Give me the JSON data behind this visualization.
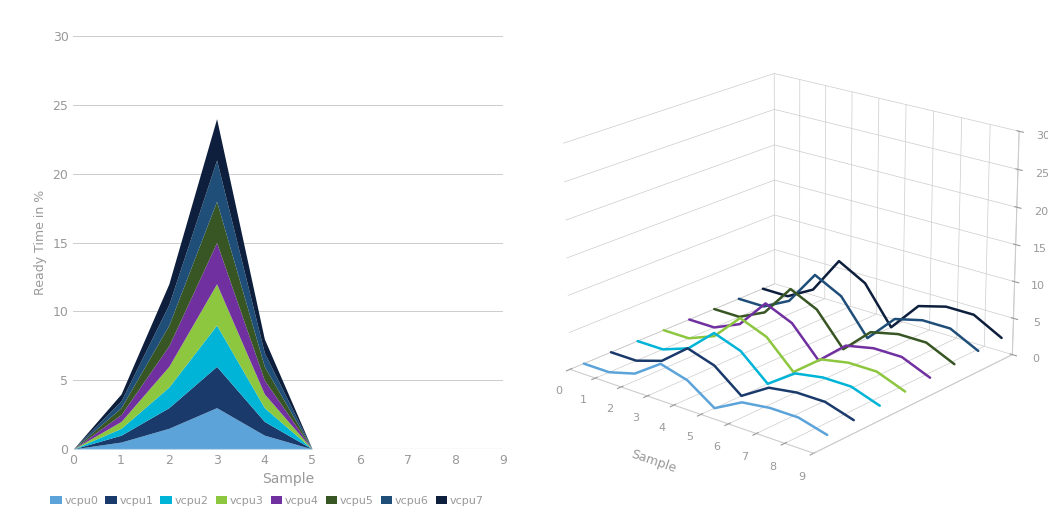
{
  "vcpu_colors": [
    "#4db3e6",
    "#1a3a6b",
    "#00c0f0",
    "#70ad47",
    "#7030a0",
    "#375623",
    "#1f4e79",
    "#0d1f3c"
  ],
  "vcpu_labels": [
    "vcpu0",
    "vcpu1",
    "vcpu2",
    "vcpu3",
    "vcpu4",
    "vcpu5",
    "vcpu6",
    "vcpu7"
  ],
  "left_x": [
    0,
    1,
    2,
    3,
    4,
    5,
    6,
    7,
    8,
    9
  ],
  "left_bands": [
    [
      0,
      0.5,
      1.5,
      3.0,
      1.0,
      0,
      0,
      0,
      0,
      0
    ],
    [
      0,
      0.5,
      1.5,
      3.0,
      1.0,
      0,
      0,
      0,
      0,
      0
    ],
    [
      0,
      0.5,
      1.5,
      3.0,
      1.0,
      0,
      0,
      0,
      0,
      0
    ],
    [
      0,
      0.5,
      1.5,
      3.0,
      1.0,
      0,
      0,
      0,
      0,
      0
    ],
    [
      0,
      0.5,
      1.5,
      3.0,
      1.0,
      0,
      0,
      0,
      0,
      0
    ],
    [
      0,
      0.5,
      1.5,
      3.0,
      1.0,
      0,
      0,
      0,
      0,
      0
    ],
    [
      0,
      0.5,
      1.5,
      3.0,
      1.0,
      0,
      0,
      0,
      0,
      0
    ],
    [
      0,
      0.5,
      1.5,
      3.0,
      1.0,
      0,
      0,
      0,
      0,
      0
    ]
  ],
  "right_data": [
    [
      0,
      0,
      1.5,
      3.5,
      2.5,
      -0.5,
      1.0,
      1.5,
      1.5,
      0.5
    ],
    [
      0,
      0,
      1.5,
      3.5,
      2.5,
      -0.5,
      1.0,
      1.5,
      1.5,
      0.5
    ],
    [
      0,
      0,
      1.5,
      3.5,
      2.5,
      -0.5,
      1.0,
      1.5,
      1.5,
      0.5
    ],
    [
      0,
      0,
      1.5,
      3.5,
      2.5,
      -0.5,
      1.0,
      1.5,
      1.5,
      0.5
    ],
    [
      0,
      0,
      1.5,
      3.5,
      2.5,
      -0.5,
      1.0,
      1.5,
      1.5,
      0.5
    ],
    [
      0,
      0,
      1.5,
      3.5,
      2.5,
      -0.5,
      1.0,
      1.5,
      1.5,
      0.5
    ],
    [
      0,
      0,
      1.5,
      3.5,
      2.5,
      -0.5,
      1.0,
      1.5,
      1.5,
      0.5
    ],
    [
      0,
      0,
      1.5,
      3.5,
      2.5,
      -0.5,
      1.0,
      1.5,
      1.5,
      0.5
    ]
  ],
  "ylabel": "Ready Time in %",
  "xlabel": "Sample",
  "ylim_left": [
    0,
    30
  ],
  "xlim": [
    0,
    9
  ],
  "yticks": [
    0,
    5,
    10,
    15,
    20,
    25,
    30
  ],
  "xticks": [
    0,
    1,
    2,
    3,
    4,
    5,
    6,
    7,
    8,
    9
  ],
  "background_color": "#ffffff",
  "grid_color": "#cccccc",
  "text_color": "#999999",
  "axis_color": "#cccccc"
}
